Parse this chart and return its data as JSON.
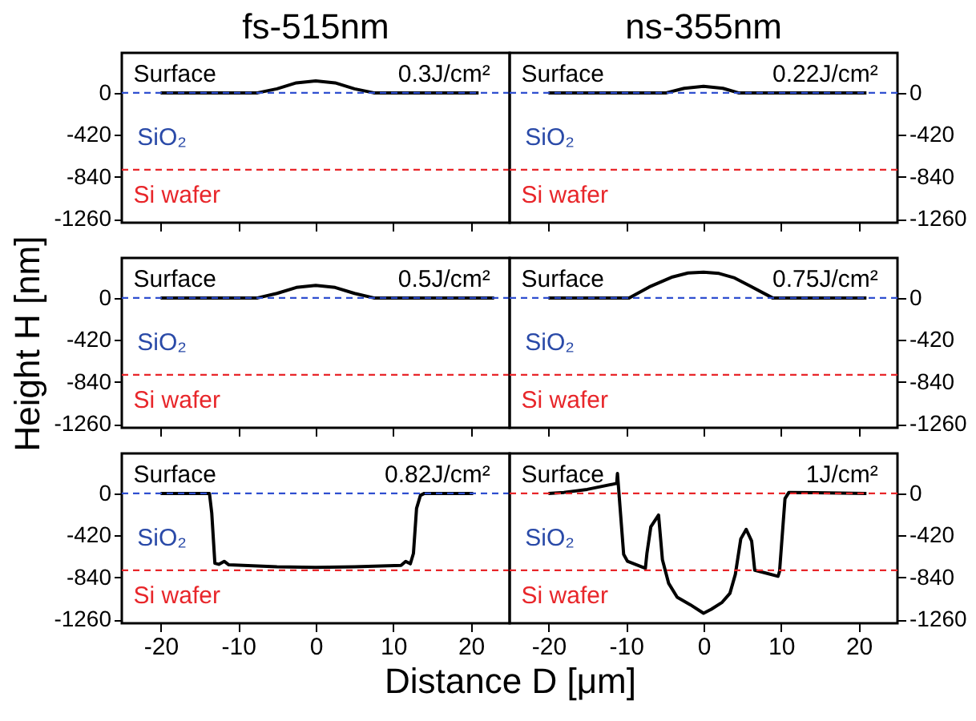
{
  "chart_data": [
    {
      "type": "line",
      "title": "fs-515nm",
      "tick_labels": "y",
      "xlim": [
        -25,
        25
      ],
      "xticks": [
        -20,
        -10,
        0,
        10,
        20
      ],
      "ylim": [
        -1300,
        400
      ],
      "yticks": [
        0,
        -420,
        -840,
        -1260
      ],
      "series": [
        {
          "color": "#000000",
          "x": [
            -20,
            -7.5,
            -5,
            -2.5,
            0,
            2.5,
            5,
            7.5,
            21
          ],
          "values": [
            0,
            0,
            40,
            100,
            120,
            100,
            40,
            0,
            0
          ]
        }
      ],
      "ref_lines": [
        {
          "axis": "y",
          "value": 0,
          "color": "#2f4fd0",
          "line_style": "dashed"
        },
        {
          "axis": "y",
          "value": -770,
          "color": "#e8262a",
          "line_style": "dashed"
        }
      ],
      "annotations": [
        "Surface",
        "SiO₂",
        "Si wafer",
        "0.3J/cm²"
      ]
    },
    {
      "type": "line",
      "title": "ns-355nm",
      "tick_labels": "y",
      "xlim": [
        -25,
        25
      ],
      "xticks": [
        -20,
        -10,
        0,
        10,
        20
      ],
      "ylim": [
        -1300,
        400
      ],
      "yticks": [
        0,
        -420,
        -840,
        -1260
      ],
      "series": [
        {
          "color": "#000000",
          "x": [
            -20,
            -4.8,
            -2.5,
            0,
            2.5,
            4.5,
            21
          ],
          "values": [
            0,
            0,
            45,
            66,
            45,
            0,
            0
          ]
        }
      ],
      "ref_lines": [
        {
          "axis": "y",
          "value": 0,
          "color": "#2f4fd0",
          "line_style": "dashed"
        },
        {
          "axis": "y",
          "value": -770,
          "color": "#e8262a",
          "line_style": "dashed"
        }
      ],
      "annotations": [
        "Surface",
        "SiO₂",
        "Si wafer",
        "0.22J/cm²"
      ]
    },
    {
      "type": "line",
      "ylabel": "Height H [nm]",
      "tick_labels": "y",
      "xlim": [
        -25,
        25
      ],
      "xticks": [
        -20,
        -10,
        0,
        10,
        20
      ],
      "ylim": [
        -1300,
        400
      ],
      "yticks": [
        0,
        -420,
        -840,
        -1260
      ],
      "series": [
        {
          "color": "#000000",
          "x": [
            -20,
            -7.5,
            -5,
            -2.5,
            0,
            2.5,
            5,
            7.5,
            23
          ],
          "values": [
            0,
            0,
            45,
            105,
            125,
            105,
            45,
            0,
            0
          ]
        }
      ],
      "ref_lines": [
        {
          "axis": "y",
          "value": 0,
          "color": "#2f4fd0",
          "line_style": "dashed"
        },
        {
          "axis": "y",
          "value": -770,
          "color": "#e8262a",
          "line_style": "dashed"
        }
      ],
      "annotations": [
        "Surface",
        "SiO₂",
        "Si wafer",
        "0.5J/cm²"
      ]
    },
    {
      "type": "line",
      "tick_labels": "y",
      "xlim": [
        -25,
        25
      ],
      "xticks": [
        -20,
        -10,
        0,
        10,
        20
      ],
      "ylim": [
        -1300,
        400
      ],
      "yticks": [
        0,
        -420,
        -840,
        -1260
      ],
      "series": [
        {
          "color": "#000000",
          "x": [
            -20,
            -9.6,
            -7,
            -4,
            -2,
            0,
            2,
            4,
            6,
            8.9,
            21
          ],
          "values": [
            0,
            0,
            110,
            210,
            250,
            258,
            245,
            200,
            120,
            0,
            0
          ]
        }
      ],
      "ref_lines": [
        {
          "axis": "y",
          "value": 0,
          "color": "#2f4fd0",
          "line_style": "dashed"
        },
        {
          "axis": "y",
          "value": -770,
          "color": "#e8262a",
          "line_style": "dashed"
        }
      ],
      "annotations": [
        "Surface",
        "SiO₂",
        "Si wafer",
        "0.75J/cm²"
      ]
    },
    {
      "type": "line",
      "xlabel": "Distance D [μm]",
      "xlim": [
        -25,
        25
      ],
      "xticks": [
        -20,
        -10,
        0,
        10,
        20
      ],
      "ylim": [
        -1300,
        400
      ],
      "yticks": [
        0,
        -420,
        -840,
        -1260
      ],
      "series": [
        {
          "color": "#000000",
          "x": [
            -20,
            -13.7,
            -13.4,
            -13,
            -12.5,
            -11.8,
            -11.2,
            -5,
            0,
            5,
            11,
            11.6,
            12.2,
            12.6,
            13,
            13.5,
            14,
            20.3
          ],
          "values": [
            0,
            0,
            -200,
            -700,
            -710,
            -680,
            -715,
            -735,
            -740,
            -735,
            -720,
            -680,
            -705,
            -600,
            -150,
            -20,
            0,
            0
          ]
        }
      ],
      "ref_lines": [
        {
          "axis": "y",
          "value": 0,
          "color": "#2f4fd0",
          "line_style": "dashed"
        },
        {
          "axis": "y",
          "value": -770,
          "color": "#e8262a",
          "line_style": "dashed"
        }
      ],
      "annotations": [
        "Surface",
        "SiO₂",
        "Si wafer",
        "0.82J/cm²"
      ]
    },
    {
      "type": "line",
      "xlim": [
        -25,
        25
      ],
      "xticks": [
        -20,
        -10,
        0,
        10,
        20
      ],
      "ylim": [
        -1300,
        400
      ],
      "yticks": [
        0,
        -420,
        -840,
        -1260
      ],
      "series": [
        {
          "color": "#000000",
          "x": [
            -20,
            -18,
            -15,
            -11.2,
            -11.1,
            -10.3,
            -9.8,
            -7.5,
            -7.3,
            -6.8,
            -5.8,
            -5.3,
            -4.5,
            -3.4,
            -1.7,
            0,
            1,
            2.4,
            3.4,
            4.1,
            4.8,
            5.5,
            6.2,
            6.6,
            7.9,
            9.6,
            9.8,
            10.5,
            11,
            21
          ],
          "values": [
            0,
            10,
            40,
            100,
            200,
            -610,
            -680,
            -750,
            -600,
            -335,
            -217,
            -665,
            -900,
            -1040,
            -1115,
            -1200,
            -1160,
            -1090,
            -1000,
            -810,
            -455,
            -360,
            -477,
            -770,
            -795,
            -830,
            -780,
            -52,
            10,
            0
          ]
        }
      ],
      "ref_lines": [
        {
          "axis": "y",
          "value": 0,
          "color": "#e8262a",
          "line_style": "dashed"
        },
        {
          "axis": "y",
          "value": -770,
          "color": "#e8262a",
          "line_style": "dashed"
        }
      ],
      "annotations": [
        "Surface",
        "SiO₂",
        "Si wafer",
        "1J/cm²"
      ]
    }
  ]
}
